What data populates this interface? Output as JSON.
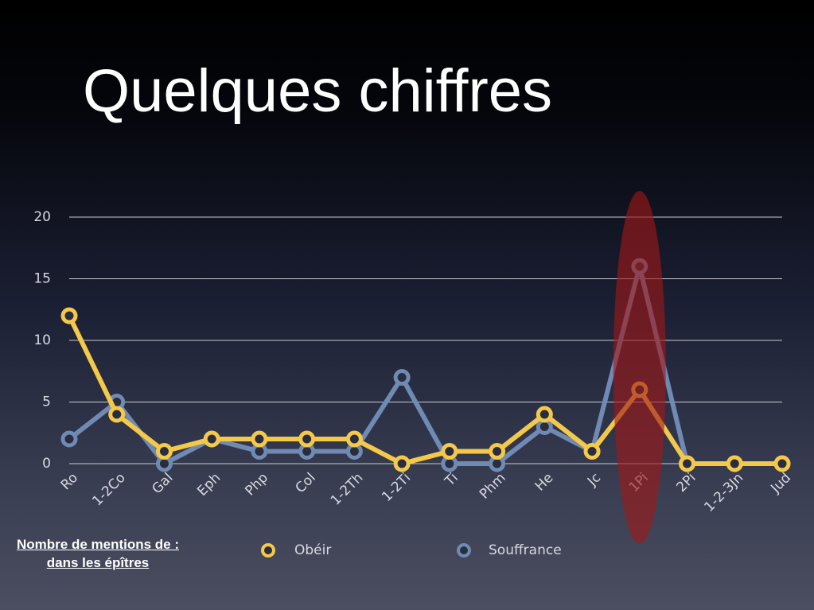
{
  "chart_data": {
    "type": "line",
    "title": "Quelques chiffres",
    "categories": [
      "Ro",
      "1-2Co",
      "Gal",
      "Eph",
      "Php",
      "Col",
      "1-2Th",
      "1-2Ti",
      "Ti",
      "Phm",
      "He",
      "Jc",
      "1Pi",
      "2Pi",
      "1-2-3Jn",
      "Jud"
    ],
    "series": [
      {
        "name": "Obéir",
        "color": "#f4c94a",
        "values": [
          12,
          4,
          1,
          2,
          2,
          2,
          2,
          0,
          1,
          1,
          4,
          1,
          6,
          0,
          0,
          0
        ]
      },
      {
        "name": "Souffrance",
        "color": "#6f8ab3",
        "values": [
          2,
          5,
          0,
          2,
          1,
          1,
          1,
          7,
          0,
          0,
          3,
          1,
          16,
          0,
          0,
          0
        ]
      }
    ],
    "ylim": [
      0,
      20
    ],
    "yticks": [
      0,
      5,
      10,
      15,
      20
    ],
    "grid": true,
    "annotations": [
      "Nombre de mentions de :",
      "dans les épîtres"
    ]
  }
}
